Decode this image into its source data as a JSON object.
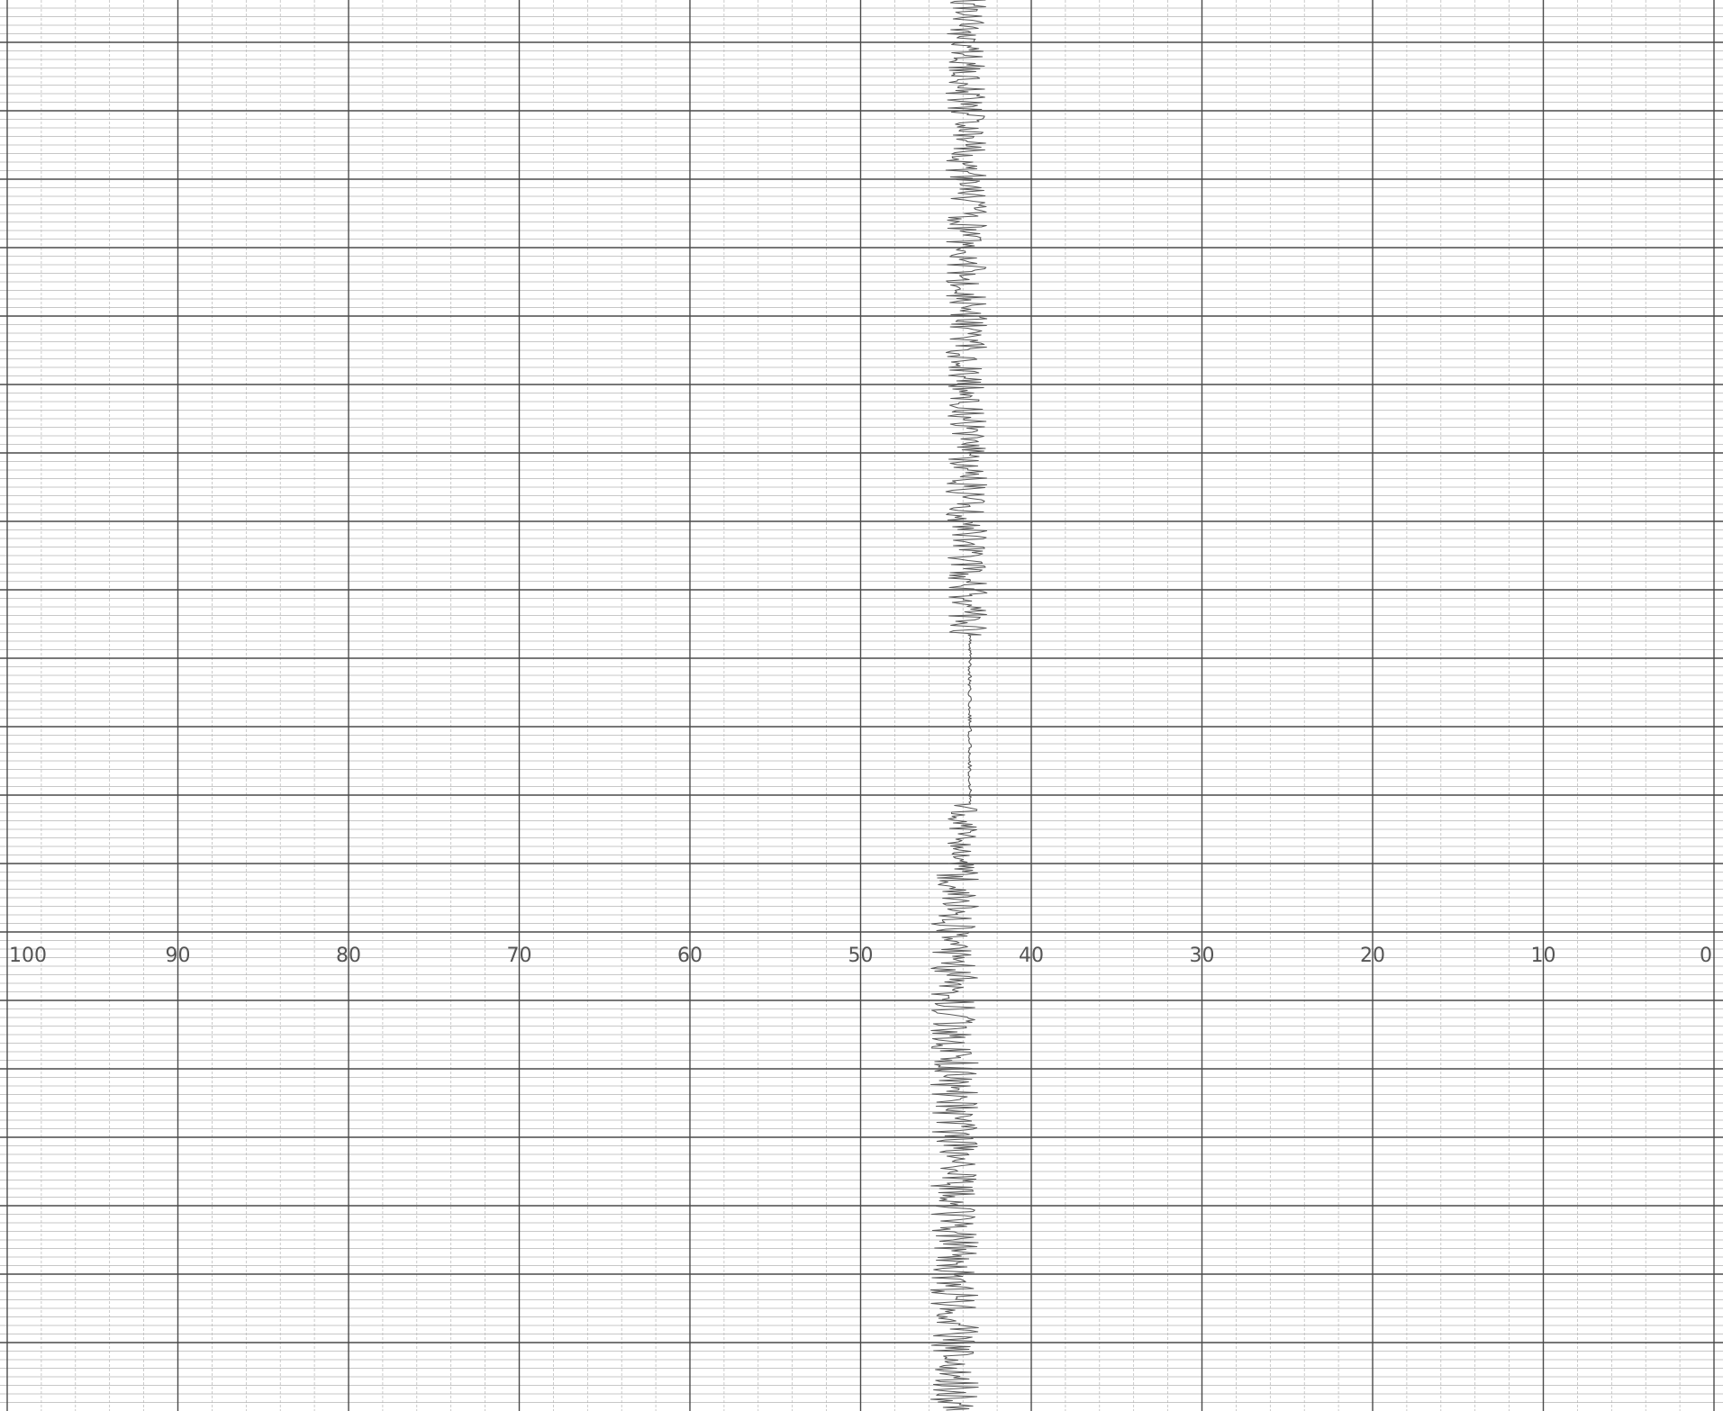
{
  "chart_data": {
    "type": "line",
    "title": "",
    "xlabel": "",
    "ylabel": "",
    "x_axis_reversed": true,
    "xlim": [
      0,
      100
    ],
    "x_ticks": [
      100,
      90,
      80,
      70,
      60,
      50,
      40,
      30,
      20,
      10,
      0
    ],
    "tick_labels": [
      "100",
      "90",
      "80",
      "70",
      "60",
      "50",
      "40",
      "30",
      "20",
      "10",
      "0"
    ],
    "grid": true,
    "legend": "none",
    "series": [
      {
        "trace_segments": [
          {
            "from": 0.0,
            "to": 0.45,
            "center": 43.8,
            "noise_amplitude": 1.2
          },
          {
            "from": 0.45,
            "to": 0.57,
            "center": 43.6,
            "noise_amplitude": 0.1
          },
          {
            "from": 0.57,
            "to": 0.62,
            "center": 44.0,
            "noise_amplitude": 0.9
          },
          {
            "from": 0.62,
            "to": 1.0,
            "center": 44.5,
            "noise_amplitude": 1.4
          }
        ]
      }
    ],
    "colors": {
      "paper": "#ffffff",
      "major_grid": "#4a4a4a",
      "minor_grid": "#b5b5b5",
      "trace": "#5a5a5a",
      "labels": "#555555"
    }
  }
}
